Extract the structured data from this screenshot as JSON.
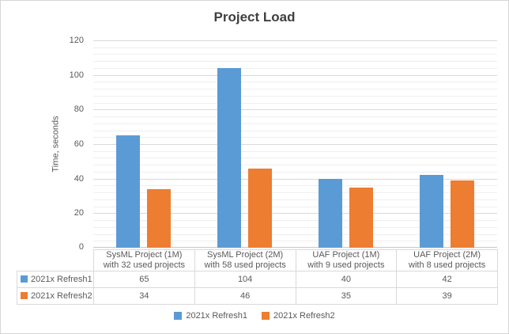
{
  "chart_data": {
    "type": "bar",
    "title": "Project Load",
    "ylabel": "Time, seconds",
    "xlabel": "",
    "categories": [
      "SysML Project (1M)\nwith 32 used projects",
      "SysML Project (2M)\nwith 58 used projects",
      "UAF Project (1M)\nwith 9 used projects",
      "UAF Project (2M)\nwith 8 used projects"
    ],
    "series": [
      {
        "name": "2021x Refresh1",
        "color": "#5B9BD5",
        "values": [
          65,
          104,
          40,
          42
        ]
      },
      {
        "name": "2021x Refresh2",
        "color": "#ED7D31",
        "values": [
          34,
          46,
          35,
          39
        ]
      }
    ],
    "yaxis": {
      "min": 0,
      "max": 120,
      "major_unit": 20,
      "minor_unit": 4,
      "ticks": [
        0,
        20,
        40,
        60,
        80,
        100,
        120
      ]
    },
    "grid": {
      "major_color": "#d9d9d9",
      "minor_color": "#efefef",
      "axis_line_color": "#c9c9c9"
    },
    "legend_position": "bottom",
    "data_table_shown": true,
    "text_color": "#595959",
    "title_color": "#404040"
  }
}
